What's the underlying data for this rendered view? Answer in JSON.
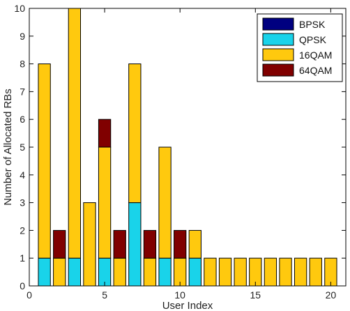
{
  "chart_data": {
    "type": "bar",
    "stacked": true,
    "title": "",
    "xlabel": "User Index",
    "ylabel": "Number of Allocated RBs",
    "xlim": [
      0,
      21
    ],
    "ylim": [
      0,
      10
    ],
    "x_ticks": [
      0,
      5,
      10,
      15,
      20
    ],
    "y_ticks": [
      0,
      1,
      2,
      3,
      4,
      5,
      6,
      7,
      8,
      9,
      10
    ],
    "grid": false,
    "legend_position": "top-right",
    "categories": [
      1,
      2,
      3,
      4,
      5,
      6,
      7,
      8,
      9,
      10,
      11,
      12,
      13,
      14,
      15,
      16,
      17,
      18,
      19,
      20
    ],
    "series": [
      {
        "name": "BPSK",
        "color": "#000080",
        "values": [
          0,
          0,
          0,
          0,
          0,
          0,
          0,
          0,
          0,
          0,
          0,
          0,
          0,
          0,
          0,
          0,
          0,
          0,
          0,
          0
        ]
      },
      {
        "name": "QPSK",
        "color": "#19d3ea",
        "values": [
          1,
          0,
          1,
          0,
          1,
          0,
          3,
          0,
          1,
          0,
          1,
          0,
          0,
          0,
          0,
          0,
          0,
          0,
          0,
          0
        ]
      },
      {
        "name": "16QAM",
        "color": "#ffc90e",
        "values": [
          7,
          1,
          9,
          3,
          4,
          1,
          5,
          1,
          4,
          1,
          1,
          1,
          1,
          1,
          1,
          1,
          1,
          1,
          1,
          1
        ]
      },
      {
        "name": "64QAM",
        "color": "#800000",
        "values": [
          0,
          1,
          0,
          0,
          1,
          1,
          0,
          1,
          0,
          1,
          0,
          0,
          0,
          0,
          0,
          0,
          0,
          0,
          0,
          0
        ]
      }
    ]
  }
}
